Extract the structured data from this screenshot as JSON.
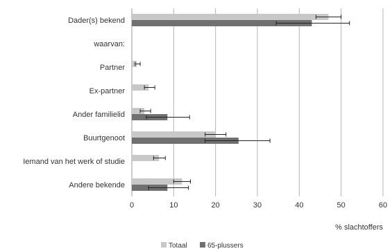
{
  "chart_data": {
    "type": "bar",
    "orientation": "horizontal",
    "categories": [
      "Dader(s) bekend",
      "waarvan:",
      "Partner",
      "Ex-partner",
      "Ander familielid",
      "Buurtgenoot",
      "Iemand van het werk of studie",
      "Andere bekende"
    ],
    "series": [
      {
        "name": "Totaal",
        "color": "#c8c8c8",
        "values": [
          47,
          null,
          1.2,
          4.0,
          3.0,
          20.0,
          6.5,
          12.0
        ],
        "error": [
          [
            44,
            50
          ],
          null,
          [
            0.8,
            2.0
          ],
          [
            3.0,
            5.5
          ],
          [
            2.0,
            4.5
          ],
          [
            17.5,
            22.5
          ],
          [
            5.2,
            8.0
          ],
          [
            10.0,
            14.0
          ]
        ]
      },
      {
        "name": "65-plussers",
        "color": "#707070",
        "values": [
          43,
          null,
          null,
          null,
          8.5,
          25.5,
          null,
          8.5
        ],
        "error": [
          [
            34.5,
            52
          ],
          null,
          null,
          null,
          [
            3.5,
            13.8
          ],
          [
            17.5,
            33.0
          ],
          null,
          [
            4.0,
            13.5
          ]
        ]
      }
    ],
    "xlabel": "% slachtoffers",
    "ylabel": "",
    "xlim": [
      0,
      60
    ],
    "xticks": [
      0,
      10,
      20,
      30,
      40,
      50,
      60
    ],
    "grid": true,
    "legend_position": "bottom"
  }
}
